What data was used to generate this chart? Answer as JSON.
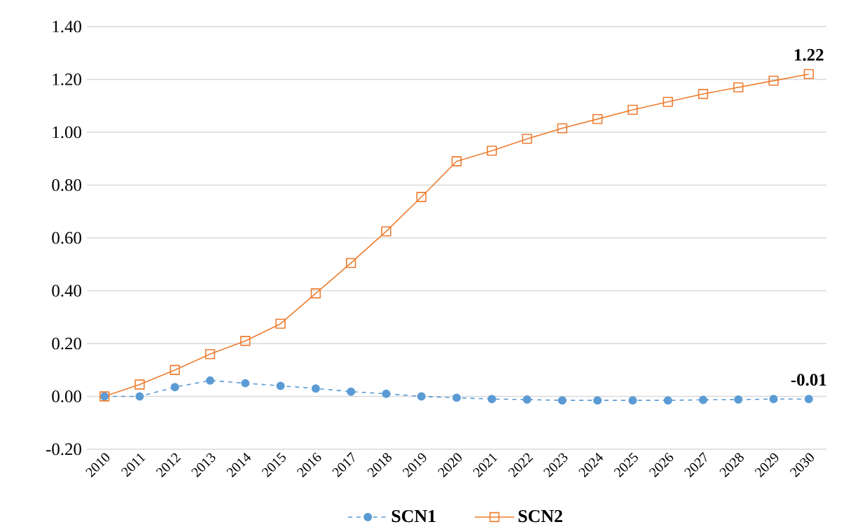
{
  "chart_data": {
    "type": "line",
    "categories": [
      "2010",
      "2011",
      "2012",
      "2013",
      "2014",
      "2015",
      "2016",
      "2017",
      "2018",
      "2019",
      "2020",
      "2021",
      "2022",
      "2023",
      "2024",
      "2025",
      "2026",
      "2027",
      "2028",
      "2029",
      "2030"
    ],
    "series": [
      {
        "name": "SCN1",
        "color": "#5b9bd5",
        "marker": "circle",
        "line_style": "dashed",
        "values": [
          0,
          0,
          0.035,
          0.06,
          0.05,
          0.04,
          0.03,
          0.018,
          0.01,
          0.0,
          -0.005,
          -0.01,
          -0.012,
          -0.015,
          -0.015,
          -0.015,
          -0.015,
          -0.013,
          -0.012,
          -0.01,
          -0.01
        ],
        "value_labels": [
          null,
          null,
          null,
          null,
          null,
          null,
          null,
          null,
          null,
          null,
          null,
          null,
          null,
          null,
          null,
          null,
          null,
          null,
          null,
          null,
          "-0.01"
        ]
      },
      {
        "name": "SCN2",
        "color": "#ed7d31",
        "marker": "square",
        "line_style": "solid",
        "values": [
          0,
          0.045,
          0.1,
          0.16,
          0.21,
          0.275,
          0.39,
          0.505,
          0.625,
          0.755,
          0.89,
          0.93,
          0.975,
          1.015,
          1.05,
          1.085,
          1.115,
          1.145,
          1.17,
          1.195,
          1.22
        ],
        "value_labels": [
          null,
          null,
          null,
          null,
          null,
          null,
          null,
          null,
          null,
          null,
          null,
          null,
          null,
          null,
          null,
          null,
          null,
          null,
          null,
          null,
          "1.22"
        ]
      }
    ],
    "ylim": [
      -0.2,
      1.4
    ],
    "yticks": [
      {
        "value": -0.2,
        "label": "-0.20"
      },
      {
        "value": 0,
        "label": "0.00"
      },
      {
        "value": 0.2,
        "label": "0.20"
      },
      {
        "value": 0.4,
        "label": "0.40"
      },
      {
        "value": 0.6,
        "label": "0.60"
      },
      {
        "value": 0.8,
        "label": "0.80"
      },
      {
        "value": 1.0,
        "label": "1.00"
      },
      {
        "value": 1.2,
        "label": "1.20"
      },
      {
        "value": 1.4,
        "label": "1.40"
      }
    ],
    "grid": "y",
    "legend": "bottom"
  }
}
